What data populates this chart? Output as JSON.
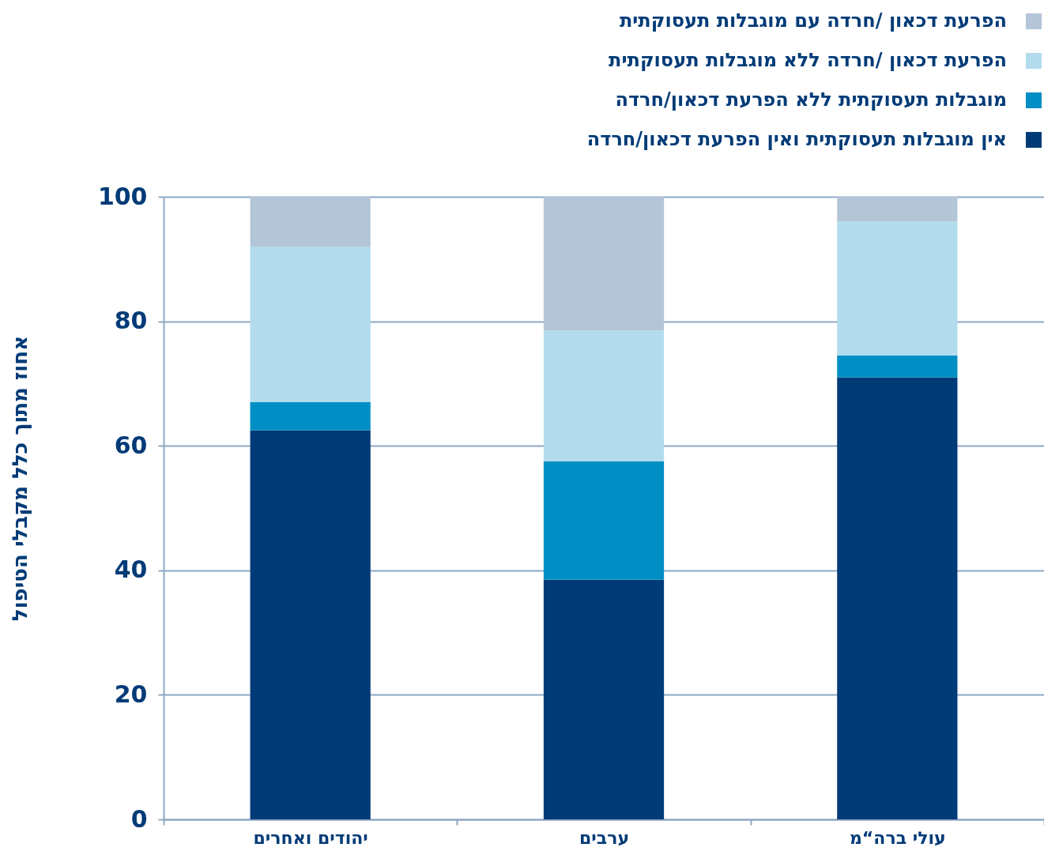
{
  "chart_data": {
    "type": "bar",
    "stacked": true,
    "ylabel": "אחוז מתוך כלל מקבלי הטיפול",
    "categories": [
      "יהודים ואחרים",
      "ערבים",
      "עולי ברה“מ"
    ],
    "series": [
      {
        "name": "אין מוגבלות תעסוקתית ואין הפרעת דכאון/חרדה",
        "color": "#003b77",
        "values": [
          62.5,
          38.5,
          71
        ]
      },
      {
        "name": "מוגבלות תעסוקתית ללא הפרעת דכאון/חרדה",
        "color": "#008fc5",
        "values": [
          4.5,
          19,
          3.5
        ]
      },
      {
        "name": "הפרעת דכאון /חרדה ללא מוגבלות תעסוקתית",
        "color": "#b2dcee",
        "values": [
          25,
          21,
          21.5
        ]
      },
      {
        "name": "הפרעת דכאון /חרדה עם מוגבלות תעסוקתית",
        "color": "#b3c5d7",
        "values": [
          8,
          21.5,
          4
        ]
      }
    ],
    "ylim": [
      0,
      100
    ],
    "yticks": [
      0,
      20,
      40,
      60,
      80,
      100
    ],
    "grid": "y",
    "legend": "top right"
  }
}
